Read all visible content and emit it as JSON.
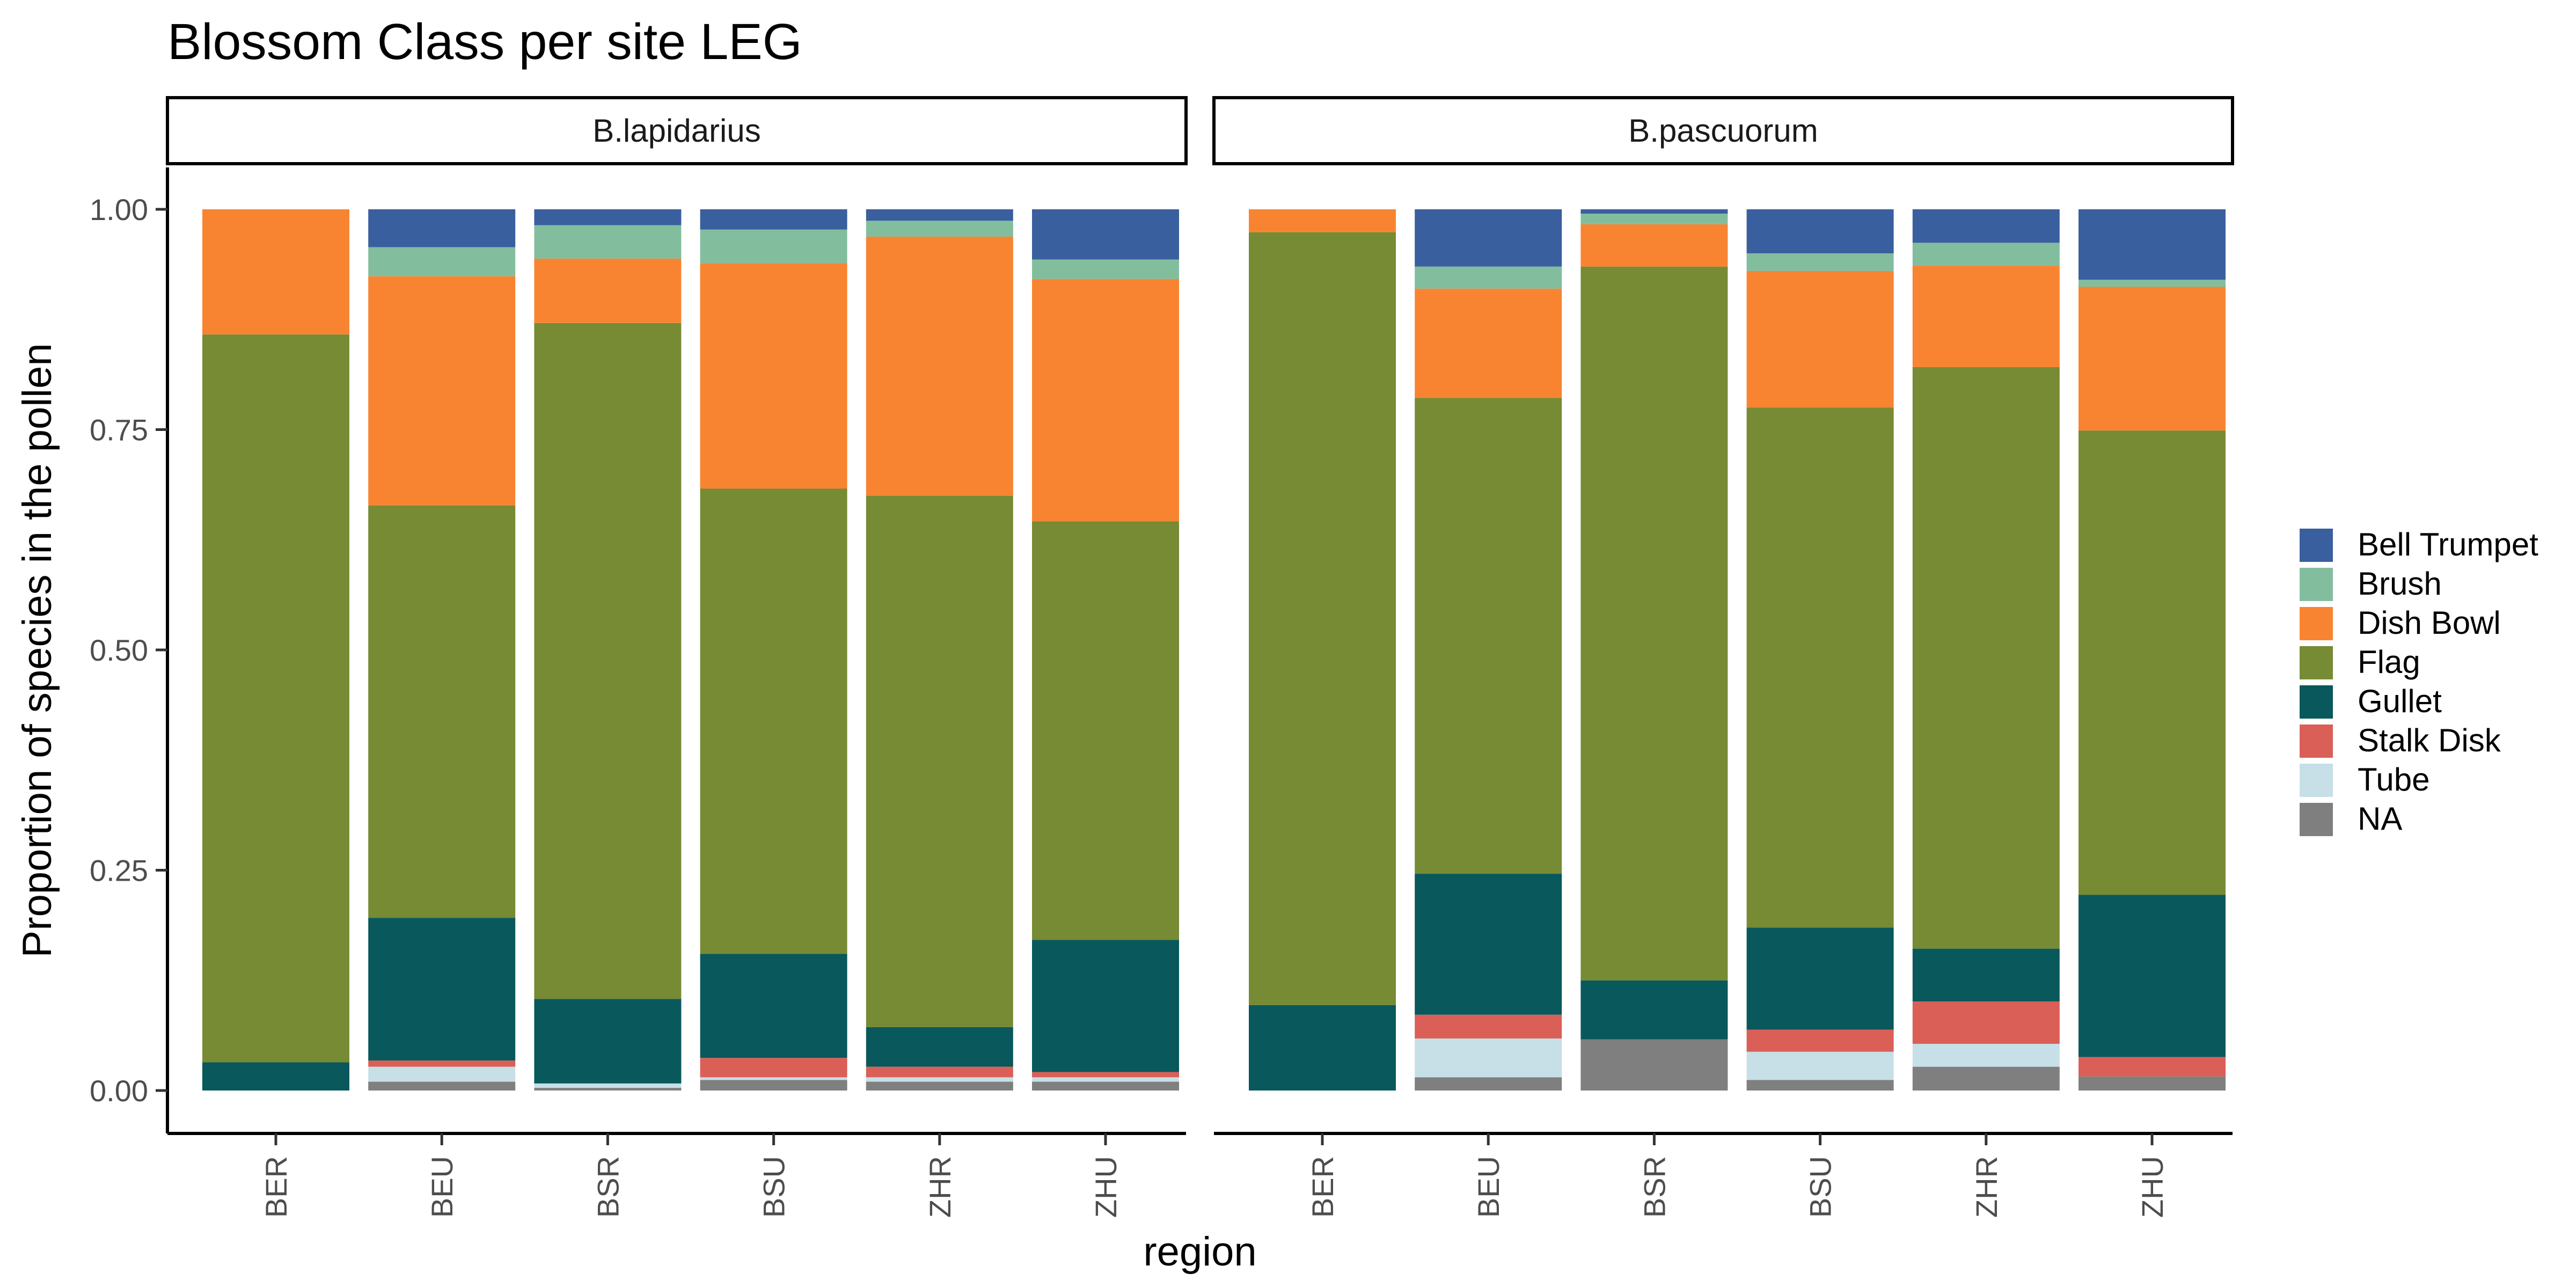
{
  "chart_data": {
    "type": "bar",
    "stacked": true,
    "title": "Blossom Class per site LEG",
    "xlabel": "region",
    "ylabel": "Proportion of species in the pollen",
    "ylim": [
      0,
      1
    ],
    "yticks": [
      "0.00",
      "0.25",
      "0.50",
      "0.75",
      "1.00"
    ],
    "yticks_values": [
      0,
      0.25,
      0.5,
      0.75,
      1
    ],
    "grid": false,
    "legend_position": "right",
    "categories": [
      "BER",
      "BEU",
      "BSR",
      "BSU",
      "ZHR",
      "ZHU"
    ],
    "stack_order": [
      "NA",
      "Tube",
      "Stalk Disk",
      "Gullet",
      "Flag",
      "Dish Bowl",
      "Brush",
      "Bell Trumpet"
    ],
    "legend": [
      {
        "name": "Bell Trumpet",
        "color": "#3A5F9E"
      },
      {
        "name": "Brush",
        "color": "#82BE9E"
      },
      {
        "name": "Dish Bowl",
        "color": "#F88431"
      },
      {
        "name": "Flag",
        "color": "#778A34"
      },
      {
        "name": "Gullet",
        "color": "#09585B"
      },
      {
        "name": "Stalk Disk",
        "color": "#DA5F57"
      },
      {
        "name": "Tube",
        "color": "#C7DFE6"
      },
      {
        "name": "NA",
        "color": "#7F7F7F"
      }
    ],
    "panels": [
      {
        "name": "B.lapidarius",
        "series": [
          {
            "name": "NA",
            "values": [
              0,
              0.01,
              0.003,
              0.012,
              0.01,
              0.01
            ]
          },
          {
            "name": "Tube",
            "values": [
              0,
              0.017,
              0.005,
              0.003,
              0.005,
              0.005
            ]
          },
          {
            "name": "Stalk Disk",
            "values": [
              0,
              0.007,
              0,
              0.022,
              0.012,
              0.006
            ]
          },
          {
            "name": "Gullet",
            "values": [
              0.032,
              0.162,
              0.096,
              0.118,
              0.045,
              0.15
            ]
          },
          {
            "name": "Flag",
            "values": [
              0.826,
              0.468,
              0.767,
              0.528,
              0.603,
              0.475
            ]
          },
          {
            "name": "Dish Bowl",
            "values": [
              0.142,
              0.26,
              0.073,
              0.256,
              0.294,
              0.275
            ]
          },
          {
            "name": "Brush",
            "values": [
              0,
              0.033,
              0.038,
              0.038,
              0.018,
              0.022
            ]
          },
          {
            "name": "Bell Trumpet",
            "values": [
              0,
              0.043,
              0.018,
              0.023,
              0.013,
              0.057
            ]
          }
        ]
      },
      {
        "name": "B.pascuorum",
        "series": [
          {
            "name": "NA",
            "values": [
              0,
              0.015,
              0.058,
              0.012,
              0.027,
              0.016
            ]
          },
          {
            "name": "Tube",
            "values": [
              0,
              0.044,
              0,
              0.032,
              0.026,
              0
            ]
          },
          {
            "name": "Stalk Disk",
            "values": [
              0,
              0.027,
              0,
              0.025,
              0.048,
              0.022
            ]
          },
          {
            "name": "Gullet",
            "values": [
              0.097,
              0.16,
              0.067,
              0.116,
              0.06,
              0.184
            ]
          },
          {
            "name": "Flag",
            "values": [
              0.877,
              0.54,
              0.81,
              0.59,
              0.66,
              0.527
            ]
          },
          {
            "name": "Dish Bowl",
            "values": [
              0.026,
              0.124,
              0.048,
              0.155,
              0.115,
              0.163
            ]
          },
          {
            "name": "Brush",
            "values": [
              0,
              0.025,
              0.012,
              0.02,
              0.026,
              0.008
            ]
          },
          {
            "name": "Bell Trumpet",
            "values": [
              0,
              0.065,
              0.005,
              0.05,
              0.038,
              0.08
            ]
          }
        ]
      }
    ]
  }
}
